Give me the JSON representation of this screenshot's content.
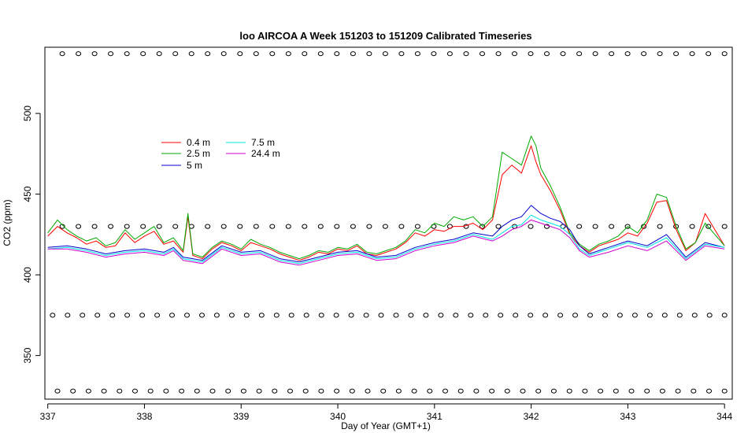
{
  "chart_data": {
    "type": "line",
    "title": "loo AIRCOA A  Week 151203 to 151209  Calibrated Timeseries",
    "xlabel": "Day of Year (GMT+1)",
    "ylabel": "CO2 (ppm)",
    "xlim": [
      336.97,
      344.08
    ],
    "ylim": [
      323,
      541
    ],
    "x_ticks": [
      337,
      338,
      339,
      340,
      341,
      342,
      343,
      344
    ],
    "y_ticks": [
      350,
      400,
      450,
      500
    ],
    "legend_position": "top-left",
    "series": [
      {
        "name": "0.4 m",
        "color": "#ff0000",
        "x": [
          337.0,
          337.1,
          337.2,
          337.3,
          337.4,
          337.5,
          337.6,
          337.7,
          337.8,
          337.9,
          338.0,
          338.1,
          338.2,
          338.3,
          338.4,
          338.45,
          338.5,
          338.6,
          338.7,
          338.8,
          338.9,
          339.0,
          339.1,
          339.2,
          339.3,
          339.4,
          339.5,
          339.6,
          339.7,
          339.8,
          339.9,
          340.0,
          340.1,
          340.2,
          340.3,
          340.4,
          340.5,
          340.6,
          340.7,
          340.8,
          340.9,
          341.0,
          341.1,
          341.2,
          341.3,
          341.4,
          341.5,
          341.6,
          341.7,
          341.8,
          341.9,
          342.0,
          342.05,
          342.1,
          342.2,
          342.3,
          342.4,
          342.5,
          342.6,
          342.7,
          342.8,
          342.9,
          343.0,
          343.1,
          343.2,
          343.3,
          343.4,
          343.5,
          343.6,
          343.7,
          343.8,
          343.9,
          344.0
        ],
        "y": [
          424,
          430,
          426,
          423,
          419,
          421,
          417,
          418,
          426,
          420,
          424,
          427,
          419,
          421,
          414,
          436,
          412,
          410,
          416,
          420,
          418,
          415,
          420,
          418,
          416,
          413,
          411,
          409,
          411,
          414,
          413,
          416,
          415,
          418,
          413,
          412,
          414,
          416,
          420,
          426,
          424,
          428,
          427,
          430,
          430,
          432,
          428,
          434,
          462,
          468,
          463,
          480,
          470,
          462,
          452,
          440,
          425,
          418,
          414,
          418,
          420,
          422,
          426,
          424,
          432,
          445,
          446,
          428,
          415,
          420,
          438,
          428,
          418
        ]
      },
      {
        "name": "2.5 m",
        "color": "#00aa00",
        "x": [
          337.0,
          337.1,
          337.2,
          337.3,
          337.4,
          337.5,
          337.6,
          337.7,
          337.8,
          337.9,
          338.0,
          338.1,
          338.2,
          338.3,
          338.4,
          338.45,
          338.5,
          338.6,
          338.7,
          338.8,
          338.9,
          339.0,
          339.1,
          339.2,
          339.3,
          339.4,
          339.5,
          339.6,
          339.7,
          339.8,
          339.9,
          340.0,
          340.1,
          340.2,
          340.3,
          340.4,
          340.5,
          340.6,
          340.7,
          340.8,
          340.9,
          341.0,
          341.1,
          341.2,
          341.3,
          341.4,
          341.5,
          341.6,
          341.7,
          341.8,
          341.9,
          342.0,
          342.05,
          342.1,
          342.2,
          342.3,
          342.4,
          342.5,
          342.6,
          342.7,
          342.8,
          342.9,
          343.0,
          343.1,
          343.2,
          343.3,
          343.4,
          343.5,
          343.6,
          343.7,
          343.8,
          343.9,
          344.0
        ],
        "y": [
          426,
          434,
          428,
          424,
          421,
          423,
          418,
          420,
          428,
          422,
          426,
          430,
          420,
          423,
          415,
          438,
          413,
          411,
          417,
          421,
          419,
          416,
          422,
          419,
          417,
          414,
          412,
          410,
          412,
          415,
          414,
          417,
          416,
          419,
          414,
          413,
          415,
          417,
          421,
          428,
          426,
          432,
          430,
          436,
          434,
          436,
          430,
          436,
          476,
          472,
          468,
          486,
          480,
          466,
          455,
          442,
          426,
          419,
          415,
          419,
          421,
          424,
          430,
          426,
          434,
          450,
          448,
          430,
          416,
          420,
          432,
          425,
          418
        ]
      },
      {
        "name": "5 m",
        "color": "#0000cc",
        "x": [
          337.0,
          337.2,
          337.4,
          337.6,
          337.8,
          338.0,
          338.2,
          338.3,
          338.4,
          338.5,
          338.6,
          338.8,
          339.0,
          339.2,
          339.4,
          339.6,
          339.8,
          340.0,
          340.2,
          340.4,
          340.6,
          340.8,
          341.0,
          341.2,
          341.4,
          341.6,
          341.7,
          341.8,
          341.9,
          342.0,
          342.1,
          342.2,
          342.3,
          342.4,
          342.5,
          342.6,
          342.8,
          343.0,
          343.2,
          343.4,
          343.6,
          343.8,
          344.0
        ],
        "y": [
          417,
          418,
          416,
          413,
          415,
          416,
          414,
          417,
          411,
          410,
          409,
          418,
          414,
          415,
          410,
          408,
          411,
          414,
          415,
          411,
          412,
          417,
          420,
          422,
          426,
          424,
          430,
          434,
          436,
          443,
          438,
          435,
          433,
          428,
          418,
          413,
          417,
          421,
          418,
          425,
          411,
          420,
          417
        ]
      },
      {
        "name": "7.5 m",
        "color": "#00e5e5",
        "x": [
          337.0,
          337.2,
          337.4,
          337.6,
          337.8,
          338.0,
          338.2,
          338.3,
          338.4,
          338.5,
          338.6,
          338.8,
          339.0,
          339.2,
          339.4,
          339.6,
          339.8,
          340.0,
          340.2,
          340.4,
          340.6,
          340.8,
          341.0,
          341.2,
          341.4,
          341.6,
          341.7,
          341.8,
          341.9,
          342.0,
          342.1,
          342.2,
          342.3,
          342.4,
          342.5,
          342.6,
          342.8,
          343.0,
          343.2,
          343.4,
          343.6,
          343.8,
          344.0
        ],
        "y": [
          416,
          417,
          415,
          412,
          414,
          415,
          413,
          416,
          410,
          409,
          408,
          417,
          413,
          414,
          409,
          407,
          410,
          413,
          414,
          410,
          411,
          416,
          419,
          421,
          425,
          422,
          426,
          430,
          431,
          437,
          434,
          432,
          430,
          425,
          416,
          412,
          416,
          420,
          417,
          423,
          410,
          419,
          417
        ]
      },
      {
        "name": "24.4 m",
        "color": "#cc00cc",
        "x": [
          337.0,
          337.2,
          337.4,
          337.6,
          337.8,
          338.0,
          338.2,
          338.3,
          338.4,
          338.5,
          338.6,
          338.8,
          339.0,
          339.2,
          339.4,
          339.6,
          339.8,
          340.0,
          340.2,
          340.4,
          340.6,
          340.8,
          341.0,
          341.2,
          341.4,
          341.6,
          341.7,
          341.8,
          341.9,
          342.0,
          342.1,
          342.2,
          342.3,
          342.4,
          342.5,
          342.6,
          342.8,
          343.0,
          343.2,
          343.4,
          343.6,
          343.8,
          344.0
        ],
        "y": [
          416,
          416,
          414,
          411,
          413,
          414,
          412,
          415,
          409,
          408,
          407,
          416,
          412,
          413,
          408,
          406,
          409,
          412,
          413,
          409,
          410,
          415,
          418,
          420,
          424,
          421,
          424,
          428,
          430,
          434,
          432,
          430,
          428,
          423,
          415,
          411,
          414,
          418,
          415,
          421,
          409,
          418,
          416
        ]
      }
    ],
    "flag_rows": [
      {
        "y": 537,
        "x_start": 337.15,
        "x_end": 344.0,
        "count": 42
      },
      {
        "y": 430,
        "x_start": 337.15,
        "x_end": 344.0,
        "count": 42
      },
      {
        "y": 375,
        "x_start": 337.05,
        "x_end": 344.0,
        "count": 46
      },
      {
        "y": 328,
        "x_start": 337.1,
        "x_end": 344.0,
        "count": 44
      }
    ]
  }
}
